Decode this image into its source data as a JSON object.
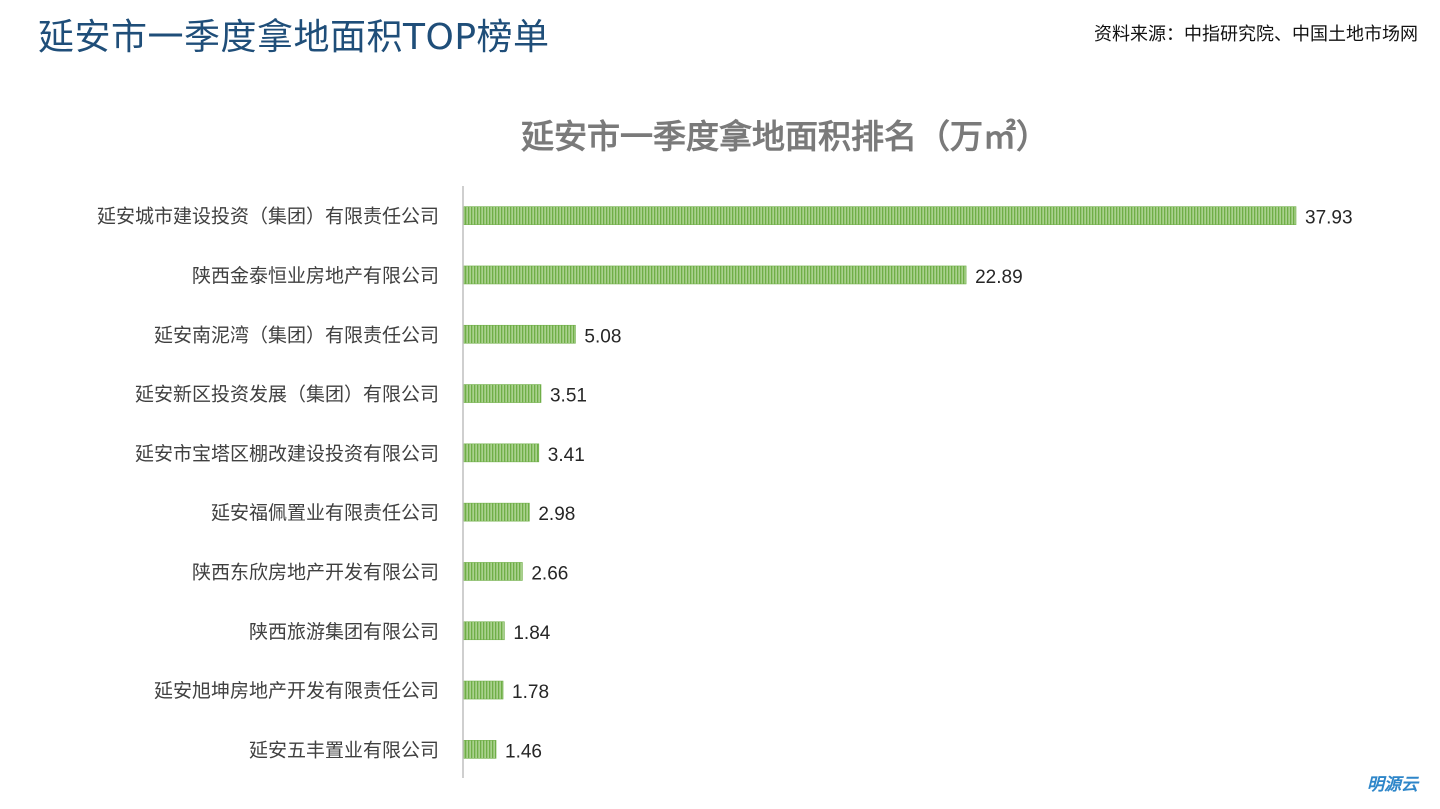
{
  "header": {
    "title": "延安市一季度拿地面积TOP榜单",
    "source": "资料来源：中指研究院、中国土地市场网"
  },
  "brand": {
    "logo_text": "明源云"
  },
  "colors": {
    "title": "#1f4e79",
    "bar_fill": "#a9d18e",
    "bar_stripe": "#6fae47",
    "axis": "#bfbfbf",
    "logo": "#2e86c9"
  },
  "chart_data": {
    "type": "bar",
    "orientation": "horizontal",
    "title": "延安市一季度拿地面积排名（万㎡）",
    "categories": [
      "延安城市建设投资（集团）有限责任公司",
      "陕西金泰恒业房地产有限公司",
      "延安南泥湾（集团）有限责任公司",
      "延安新区投资发展（集团）有限公司",
      "延安市宝塔区棚改建设投资有限公司",
      "延安福佩置业有限责任公司",
      "陕西东欣房地产开发有限公司",
      "陕西旅游集团有限公司",
      "延安旭坤房地产开发有限责任公司",
      "延安五丰置业有限公司"
    ],
    "values": [
      37.93,
      22.89,
      5.08,
      3.51,
      3.41,
      2.98,
      2.66,
      1.84,
      1.78,
      1.46
    ],
    "value_labels": [
      "37.93",
      "22.89",
      "5.08",
      "3.51",
      "3.41",
      "2.98",
      "2.66",
      "1.84",
      "1.78",
      "1.46"
    ],
    "xlim": [
      0,
      37.93
    ],
    "grid": false,
    "legend": "none"
  }
}
